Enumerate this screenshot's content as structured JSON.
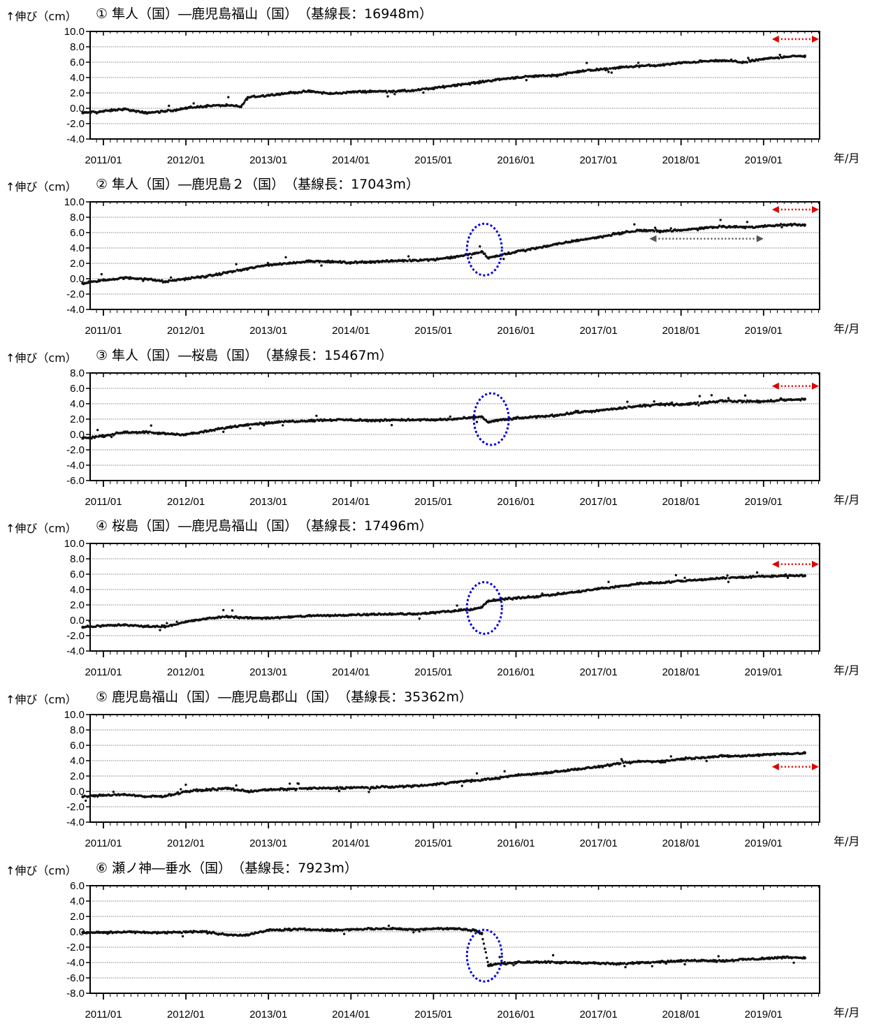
{
  "figure": {
    "y_label": "↑伸び（cm）",
    "x_unit": "年/月"
  },
  "chart_data": [
    {
      "type": "scatter",
      "title": "① 隼人（国）―鹿児島福山（国）　（基線長：16948m）",
      "ylim": [
        -4,
        10
      ],
      "yticks": [
        "10.0",
        "8.0",
        "6.0",
        "4.0",
        "2.0",
        "0.0",
        "-2.0",
        "-4.0"
      ],
      "xticks": [
        "2011/01",
        "2012/01",
        "2013/01",
        "2014/01",
        "2015/01",
        "2016/01",
        "2017/01",
        "2018/01",
        "2019/01"
      ],
      "grid": true,
      "x": [
        "2010/10",
        "2011/01",
        "2011/04",
        "2011/07",
        "2011/10",
        "2012/01",
        "2012/04",
        "2012/07",
        "2012/09",
        "2012/10",
        "2013/01",
        "2013/04",
        "2013/07",
        "2013/10",
        "2014/01",
        "2014/04",
        "2014/07",
        "2014/10",
        "2015/01",
        "2015/04",
        "2015/07",
        "2015/10",
        "2016/01",
        "2016/04",
        "2016/07",
        "2016/10",
        "2017/01",
        "2017/04",
        "2017/07",
        "2017/10",
        "2018/01",
        "2018/04",
        "2018/07",
        "2018/10",
        "2019/01",
        "2019/04",
        "2019/07"
      ],
      "values": [
        -0.6,
        -0.4,
        -0.1,
        -0.6,
        -0.4,
        0,
        0.3,
        0.4,
        0.2,
        1.4,
        1.7,
        2.0,
        2.2,
        1.9,
        2.1,
        2.2,
        2.2,
        2.3,
        2.6,
        3.0,
        3.3,
        3.7,
        4.0,
        4.2,
        4.3,
        4.8,
        5.0,
        5.3,
        5.5,
        5.6,
        5.9,
        6.1,
        6.2,
        6.0,
        6.4,
        6.7,
        6.8
      ],
      "annotations": {
        "red_arrows": [
          {
            "from": "2019/01",
            "to": "2019/07",
            "y": 9.0
          }
        ],
        "gray_arrows": [],
        "circles": []
      }
    },
    {
      "type": "scatter",
      "title": "② 隼人（国）―鹿児島２（国）　（基線長：17043m）",
      "ylim": [
        -4,
        10
      ],
      "yticks": [
        "10.0",
        "8.0",
        "6.0",
        "4.0",
        "2.0",
        "0.0",
        "-2.0",
        "-4.0"
      ],
      "xticks": [
        "2011/01",
        "2012/01",
        "2013/01",
        "2014/01",
        "2015/01",
        "2016/01",
        "2017/01",
        "2018/01",
        "2019/01"
      ],
      "grid": true,
      "x": [
        "2010/10",
        "2011/01",
        "2011/04",
        "2011/07",
        "2011/10",
        "2012/01",
        "2012/04",
        "2012/07",
        "2012/10",
        "2013/01",
        "2013/04",
        "2013/07",
        "2013/10",
        "2014/01",
        "2014/04",
        "2014/07",
        "2014/10",
        "2015/01",
        "2015/04",
        "2015/07",
        "2015/08",
        "2015/09",
        "2015/10",
        "2016/01",
        "2016/04",
        "2016/07",
        "2016/10",
        "2017/01",
        "2017/04",
        "2017/07",
        "2017/10",
        "2018/01",
        "2018/04",
        "2018/07",
        "2018/10",
        "2019/01",
        "2019/04",
        "2019/07"
      ],
      "values": [
        -0.6,
        -0.2,
        0.1,
        0.0,
        -0.4,
        0.0,
        0.3,
        0.8,
        1.3,
        1.8,
        2.0,
        2.3,
        2.2,
        2.1,
        2.2,
        2.3,
        2.4,
        2.5,
        2.8,
        3.3,
        3.5,
        2.7,
        2.9,
        3.5,
        4.0,
        4.5,
        5.0,
        5.4,
        5.9,
        6.3,
        6.2,
        6.3,
        6.6,
        6.8,
        6.7,
        6.8,
        7.0,
        7.0
      ],
      "annotations": {
        "red_arrows": [
          {
            "from": "2019/01",
            "to": "2019/07",
            "y": 9.0
          }
        ],
        "gray_arrows": [
          {
            "from": "2017/08",
            "to": "2019/01",
            "y": 5.2
          }
        ],
        "circles": [
          {
            "center": "2015/08",
            "y": 3.8
          }
        ]
      }
    },
    {
      "type": "scatter",
      "title": "③ 隼人（国）―桜島（国）　（基線長：15467m）",
      "ylim": [
        -6,
        8
      ],
      "yticks": [
        "8.0",
        "6.0",
        "4.0",
        "2.0",
        "0.0",
        "-2.0",
        "-4.0",
        "-6.0"
      ],
      "xticks": [
        "2011/01",
        "2012/01",
        "2013/01",
        "2014/01",
        "2015/01",
        "2016/01",
        "2017/01",
        "2018/01",
        "2019/01"
      ],
      "grid": true,
      "x": [
        "2010/10",
        "2011/01",
        "2011/04",
        "2011/07",
        "2011/10",
        "2012/01",
        "2012/04",
        "2012/07",
        "2012/10",
        "2013/01",
        "2013/04",
        "2013/07",
        "2013/10",
        "2014/01",
        "2014/04",
        "2014/07",
        "2014/10",
        "2015/01",
        "2015/04",
        "2015/07",
        "2015/08",
        "2015/09",
        "2015/10",
        "2016/01",
        "2016/04",
        "2016/07",
        "2016/10",
        "2017/01",
        "2017/04",
        "2017/07",
        "2017/10",
        "2018/01",
        "2018/04",
        "2018/07",
        "2018/10",
        "2019/01",
        "2019/04",
        "2019/07"
      ],
      "values": [
        -0.5,
        -0.2,
        0.3,
        0.3,
        0.1,
        0.0,
        0.4,
        0.9,
        1.3,
        1.5,
        1.7,
        1.8,
        1.9,
        1.9,
        1.8,
        1.9,
        1.9,
        1.9,
        2.0,
        2.2,
        2.3,
        1.6,
        1.8,
        2.1,
        2.3,
        2.5,
        2.9,
        3.1,
        3.4,
        3.7,
        3.9,
        3.9,
        4.1,
        4.4,
        4.3,
        4.3,
        4.5,
        4.6
      ],
      "annotations": {
        "red_arrows": [
          {
            "from": "2019/01",
            "to": "2019/07",
            "y": 6.3
          }
        ],
        "gray_arrows": [],
        "circles": [
          {
            "center": "2015/09",
            "y": 2.0
          }
        ]
      }
    },
    {
      "type": "scatter",
      "title": "④ 桜島（国）―鹿児島福山（国）　（基線長：17496m）",
      "ylim": [
        -4,
        10
      ],
      "yticks": [
        "10.0",
        "8.0",
        "6.0",
        "4.0",
        "2.0",
        "0.0",
        "-2.0",
        "-4.0"
      ],
      "xticks": [
        "2011/01",
        "2012/01",
        "2013/01",
        "2014/01",
        "2015/01",
        "2016/01",
        "2017/01",
        "2018/01",
        "2019/01"
      ],
      "grid": true,
      "x": [
        "2010/10",
        "2011/01",
        "2011/04",
        "2011/07",
        "2011/10",
        "2012/01",
        "2012/04",
        "2012/07",
        "2012/10",
        "2013/01",
        "2013/04",
        "2013/07",
        "2013/10",
        "2014/01",
        "2014/04",
        "2014/07",
        "2014/10",
        "2015/01",
        "2015/04",
        "2015/07",
        "2015/08",
        "2015/09",
        "2015/10",
        "2016/01",
        "2016/04",
        "2016/07",
        "2016/10",
        "2017/01",
        "2017/04",
        "2017/07",
        "2017/10",
        "2018/01",
        "2018/04",
        "2018/07",
        "2018/10",
        "2019/01",
        "2019/04",
        "2019/07"
      ],
      "values": [
        -0.9,
        -0.7,
        -0.6,
        -0.8,
        -0.8,
        -0.2,
        0.2,
        0.5,
        0.3,
        0.3,
        0.4,
        0.6,
        0.6,
        0.7,
        0.8,
        0.8,
        0.8,
        1.0,
        1.2,
        1.5,
        1.7,
        2.5,
        2.6,
        2.9,
        3.1,
        3.4,
        3.7,
        4.1,
        4.4,
        4.8,
        4.9,
        5.1,
        5.3,
        5.5,
        5.6,
        5.7,
        5.8,
        5.8
      ],
      "annotations": {
        "red_arrows": [
          {
            "from": "2019/01",
            "to": "2019/07",
            "y": 7.3
          }
        ],
        "gray_arrows": [],
        "circles": [
          {
            "center": "2015/08",
            "y": 1.6
          }
        ]
      }
    },
    {
      "type": "scatter",
      "title": "⑤ 鹿児島福山（国）―鹿児島郡山（国）　（基線長：35362m）",
      "ylim": [
        -4,
        10
      ],
      "yticks": [
        "10.0",
        "8.0",
        "6.0",
        "4.0",
        "2.0",
        "0.0",
        "-2.0",
        "-4.0"
      ],
      "xticks": [
        "2011/01",
        "2012/01",
        "2013/01",
        "2014/01",
        "2015/01",
        "2016/01",
        "2017/01",
        "2018/01",
        "2019/01"
      ],
      "grid": true,
      "x": [
        "2010/10",
        "2011/01",
        "2011/04",
        "2011/07",
        "2011/10",
        "2012/01",
        "2012/04",
        "2012/07",
        "2012/10",
        "2013/01",
        "2013/04",
        "2013/07",
        "2013/10",
        "2014/01",
        "2014/04",
        "2014/07",
        "2014/10",
        "2015/01",
        "2015/04",
        "2015/07",
        "2015/10",
        "2016/01",
        "2016/04",
        "2016/07",
        "2016/10",
        "2017/01",
        "2017/04",
        "2017/07",
        "2017/10",
        "2018/01",
        "2018/04",
        "2018/07",
        "2018/10",
        "2019/01",
        "2019/04",
        "2019/07"
      ],
      "values": [
        -0.7,
        -0.5,
        -0.4,
        -0.7,
        -0.6,
        0.0,
        0.2,
        0.4,
        0.0,
        0.2,
        0.3,
        0.4,
        0.4,
        0.5,
        0.5,
        0.6,
        0.7,
        0.9,
        1.2,
        1.4,
        1.7,
        2.1,
        2.3,
        2.6,
        2.9,
        3.2,
        3.6,
        3.9,
        3.9,
        4.2,
        4.4,
        4.6,
        4.6,
        4.8,
        4.9,
        5.0
      ],
      "annotations": {
        "red_arrows": [
          {
            "from": "2019/01",
            "to": "2019/07",
            "y": 3.2
          }
        ],
        "gray_arrows": [],
        "circles": []
      }
    },
    {
      "type": "scatter",
      "title": "⑥ 瀬ノ神―垂水（国）　（基線長：7923m）",
      "ylim": [
        -8,
        6
      ],
      "yticks": [
        "6.0",
        "4.0",
        "2.0",
        "0.0",
        "-2.0",
        "-4.0",
        "-6.0",
        "-8.0"
      ],
      "xticks": [
        "2011/01",
        "2012/01",
        "2013/01",
        "2014/01",
        "2015/01",
        "2016/01",
        "2017/01",
        "2018/01",
        "2019/01"
      ],
      "grid": true,
      "x": [
        "2010/10",
        "2011/01",
        "2011/04",
        "2011/07",
        "2011/10",
        "2012/01",
        "2012/04",
        "2012/07",
        "2012/10",
        "2013/01",
        "2013/04",
        "2013/07",
        "2013/10",
        "2014/01",
        "2014/04",
        "2014/07",
        "2014/10",
        "2015/01",
        "2015/04",
        "2015/07",
        "2015/08",
        "2015/09",
        "2015/10",
        "2016/01",
        "2016/04",
        "2016/07",
        "2016/10",
        "2017/01",
        "2017/04",
        "2017/07",
        "2017/10",
        "2018/01",
        "2018/04",
        "2018/07",
        "2018/10",
        "2019/01",
        "2019/04",
        "2019/07"
      ],
      "values": [
        -0.1,
        -0.1,
        0.0,
        -0.1,
        -0.1,
        0.0,
        0.0,
        -0.4,
        -0.4,
        0.2,
        0.3,
        0.3,
        0.2,
        0.3,
        0.4,
        0.4,
        0.3,
        0.4,
        0.4,
        0.2,
        -0.2,
        -4.4,
        -4.2,
        -4.0,
        -3.9,
        -4.0,
        -4.0,
        -4.1,
        -4.2,
        -4.0,
        -3.9,
        -3.8,
        -3.7,
        -3.8,
        -3.6,
        -3.5,
        -3.3,
        -3.4
      ],
      "annotations": {
        "red_arrows": [],
        "gray_arrows": [],
        "circles": [
          {
            "center": "2015/08",
            "y": -3.1
          }
        ]
      }
    }
  ]
}
